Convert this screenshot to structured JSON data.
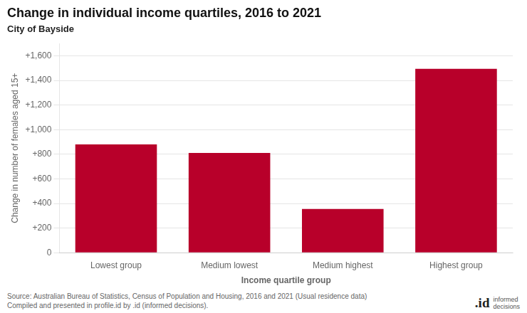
{
  "chart_data": {
    "type": "bar",
    "title": "Change in individual income quartiles, 2016 to 2021",
    "subtitle": "City of Bayside",
    "categories": [
      "Lowest group",
      "Medium lowest",
      "Medium highest",
      "Highest group"
    ],
    "values": [
      880,
      810,
      355,
      1495
    ],
    "color": "#b8002a",
    "xlabel": "Income quartile group",
    "ylabel": "Change in number of females aged 15+",
    "ylim": [
      0,
      1700
    ],
    "yticks": [
      0,
      {
        "value": 200,
        "label": "+200"
      },
      {
        "value": 400,
        "label": "+400"
      },
      {
        "value": 600,
        "label": "+600"
      },
      {
        "value": 800,
        "label": "+800"
      },
      {
        "value": 1000,
        "label": "+1,000"
      },
      {
        "value": 1200,
        "label": "+1,200"
      },
      {
        "value": 1400,
        "label": "+1,400"
      },
      {
        "value": 1600,
        "label": "+1,600"
      }
    ],
    "grid": true,
    "annotations": [
      "Source: Australian Bureau of Statistics, Census of Population and Housing, 2016 and 2021 (Usual residence data)\nCompiled and presented in profile.id by .id (informed decisions).",
      ".id",
      "informed\ndecisions"
    ]
  }
}
